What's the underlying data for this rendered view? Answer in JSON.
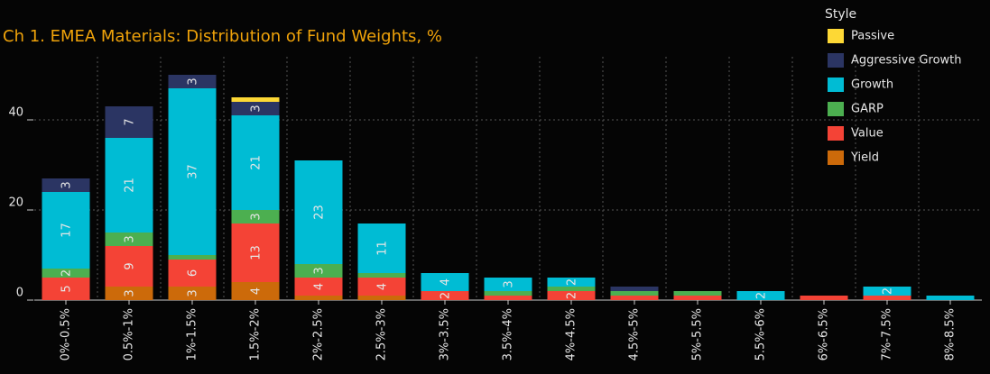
{
  "chart_data": {
    "type": "stacked_bar",
    "title": "Ch 1. EMEA Materials:  Distribution of Fund Weights, %",
    "legend_title": "Style",
    "categories": [
      "0%-0.5%",
      "0.5%-1%",
      "1%-1.5%",
      "1.5%-2%",
      "2%-2.5%",
      "2.5%-3%",
      "3%-3.5%",
      "3.5%-4%",
      "4%-4.5%",
      "4.5%-5%",
      "5%-5.5%",
      "5.5%-6%",
      "6%-6.5%",
      "7%-7.5%",
      "8%-8.5%"
    ],
    "series": [
      {
        "name": "Yield",
        "color": "#cc6a0a",
        "values": [
          0,
          3,
          3,
          4,
          1,
          1,
          0,
          0,
          0,
          0,
          0,
          0,
          0,
          0,
          0
        ]
      },
      {
        "name": "Value",
        "color": "#f44336",
        "values": [
          5,
          9,
          6,
          13,
          4,
          4,
          2,
          1,
          2,
          1,
          1,
          0,
          1,
          1,
          0
        ]
      },
      {
        "name": "GARP",
        "color": "#4caf50",
        "values": [
          2,
          3,
          1,
          3,
          3,
          1,
          0,
          1,
          1,
          1,
          1,
          0,
          0,
          0,
          0
        ]
      },
      {
        "name": "Growth",
        "color": "#00bcd4",
        "values": [
          17,
          21,
          37,
          21,
          23,
          11,
          4,
          3,
          2,
          0,
          0,
          2,
          0,
          2,
          1
        ]
      },
      {
        "name": "Aggressive Growth",
        "color": "#2b3563",
        "values": [
          3,
          7,
          3,
          3,
          0,
          0,
          0,
          0,
          0,
          1,
          0,
          0,
          0,
          0,
          0
        ]
      },
      {
        "name": "Passive",
        "color": "#fdd835",
        "values": [
          0,
          0,
          0,
          1,
          0,
          0,
          0,
          0,
          0,
          0,
          0,
          0,
          0,
          0,
          0
        ]
      }
    ],
    "ylim": [
      0,
      54
    ],
    "yticks": [
      0,
      20,
      40
    ],
    "grid": true
  }
}
